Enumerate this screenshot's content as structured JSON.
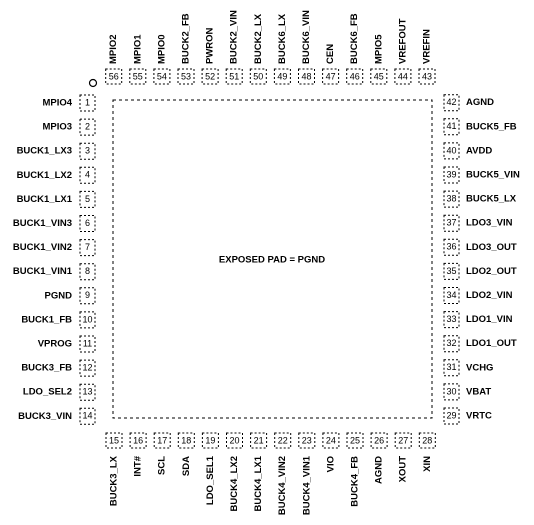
{
  "center_label": "EXPOSED PAD = PGND",
  "pins": [
    {
      "number": 1,
      "name": "MPIO4"
    },
    {
      "number": 2,
      "name": "MPIO3"
    },
    {
      "number": 3,
      "name": "BUCK1_LX3"
    },
    {
      "number": 4,
      "name": "BUCK1_LX2"
    },
    {
      "number": 5,
      "name": "BUCK1_LX1"
    },
    {
      "number": 6,
      "name": "BUCK1_VIN3"
    },
    {
      "number": 7,
      "name": "BUCK1_VIN2"
    },
    {
      "number": 8,
      "name": "BUCK1_VIN1"
    },
    {
      "number": 9,
      "name": "PGND"
    },
    {
      "number": 10,
      "name": "BUCK1_FB"
    },
    {
      "number": 11,
      "name": "VPROG"
    },
    {
      "number": 12,
      "name": "BUCK3_FB"
    },
    {
      "number": 13,
      "name": "LDO_SEL2"
    },
    {
      "number": 14,
      "name": "BUCK3_VIN"
    },
    {
      "number": 15,
      "name": "BUCK3_LX"
    },
    {
      "number": 16,
      "name": "INT#"
    },
    {
      "number": 17,
      "name": "SCL"
    },
    {
      "number": 18,
      "name": "SDA"
    },
    {
      "number": 19,
      "name": "LDO_SEL1"
    },
    {
      "number": 20,
      "name": "BUCK4_LX2"
    },
    {
      "number": 21,
      "name": "BUCK4_LX1"
    },
    {
      "number": 22,
      "name": "BUCK4_VIN2"
    },
    {
      "number": 23,
      "name": "BUCK4_VIN1"
    },
    {
      "number": 24,
      "name": "VIO"
    },
    {
      "number": 25,
      "name": "BUCK4_FB"
    },
    {
      "number": 26,
      "name": "AGND"
    },
    {
      "number": 27,
      "name": "XOUT"
    },
    {
      "number": 28,
      "name": "XIN"
    },
    {
      "number": 29,
      "name": "VRTC"
    },
    {
      "number": 30,
      "name": "VBAT"
    },
    {
      "number": 31,
      "name": "VCHG"
    },
    {
      "number": 32,
      "name": "LDO1_OUT"
    },
    {
      "number": 33,
      "name": "LDO1_VIN"
    },
    {
      "number": 34,
      "name": "LDO2_VIN"
    },
    {
      "number": 35,
      "name": "LDO2_OUT"
    },
    {
      "number": 36,
      "name": "LDO3_OUT"
    },
    {
      "number": 37,
      "name": "LDO3_VIN"
    },
    {
      "number": 38,
      "name": "BUCK5_LX"
    },
    {
      "number": 39,
      "name": "BUCK5_VIN"
    },
    {
      "number": 40,
      "name": "AVDD"
    },
    {
      "number": 41,
      "name": "BUCK5_FB"
    },
    {
      "number": 42,
      "name": "AGND"
    },
    {
      "number": 43,
      "name": "VREFIN"
    },
    {
      "number": 44,
      "name": "VREFOUT"
    },
    {
      "number": 45,
      "name": "MPIO5"
    },
    {
      "number": 46,
      "name": "BUCK6_FB"
    },
    {
      "number": 47,
      "name": "CEN"
    },
    {
      "number": 48,
      "name": "BUCK6_VIN"
    },
    {
      "number": 49,
      "name": "BUCK6_LX"
    },
    {
      "number": 50,
      "name": "BUCK2_LX"
    },
    {
      "number": 51,
      "name": "BUCK2_VIN"
    },
    {
      "number": 52,
      "name": "PWRON"
    },
    {
      "number": 53,
      "name": "BUCK2_FB"
    },
    {
      "number": 54,
      "name": "MPIO0"
    },
    {
      "number": 55,
      "name": "MPIO1"
    },
    {
      "number": 56,
      "name": "MPIO2"
    }
  ]
}
